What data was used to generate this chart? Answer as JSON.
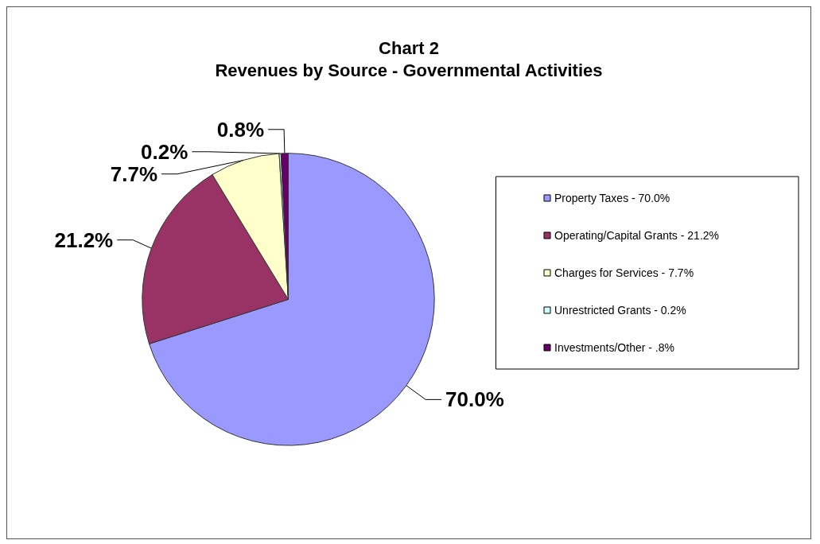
{
  "chart_data": {
    "type": "pie",
    "title": "Chart 2",
    "subtitle": "Revenues by Source - Governmental Activities",
    "categories": [
      "Property Taxes - 70.0%",
      "Operating/Capital Grants - 21.2%",
      "Charges for Services - 7.7%",
      "Unrestricted Grants - 0.2%",
      "Investments/Other - .8%"
    ],
    "values": [
      70.0,
      21.2,
      7.7,
      0.2,
      0.8
    ],
    "colors": [
      "#9999ff",
      "#993366",
      "#ffffcc",
      "#ccffff",
      "#660066"
    ],
    "value_labels": [
      "70.0%",
      "21.2%",
      "7.7%",
      "0.2%",
      "0.8%"
    ],
    "legend": "right"
  }
}
